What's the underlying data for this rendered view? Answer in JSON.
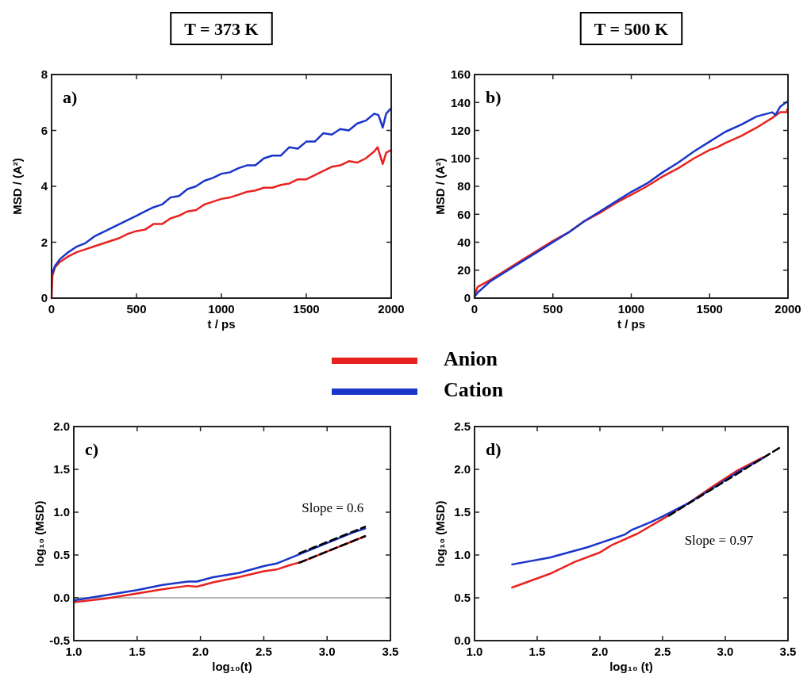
{
  "chart_data": [
    {
      "type": "line",
      "title": "T = 373 K",
      "xlabel": "t / ps",
      "ylabel": "MSD / (A²)",
      "xlim": [
        0,
        2000
      ],
      "ylim": [
        0,
        8
      ],
      "xticks": [
        0,
        500,
        1000,
        1500,
        2000
      ],
      "yticks": [
        0,
        2,
        4,
        6,
        8
      ],
      "legend": "bottom",
      "annotations": [
        "a)"
      ],
      "series": [
        {
          "name": "Anion",
          "color": "#e8231f",
          "x": [
            0,
            5,
            20,
            50,
            100,
            150,
            200,
            250,
            300,
            350,
            400,
            450,
            500,
            550,
            600,
            650,
            700,
            750,
            800,
            850,
            900,
            950,
            1000,
            1050,
            1100,
            1150,
            1200,
            1250,
            1300,
            1350,
            1400,
            1450,
            1500,
            1550,
            1600,
            1650,
            1700,
            1750,
            1800,
            1850,
            1900,
            1920,
            1950,
            1970,
            2000
          ],
          "values": [
            0,
            0.8,
            1.1,
            1.3,
            1.5,
            1.65,
            1.75,
            1.85,
            1.95,
            2.05,
            2.15,
            2.3,
            2.4,
            2.45,
            2.65,
            2.65,
            2.85,
            2.95,
            3.1,
            3.15,
            3.35,
            3.45,
            3.55,
            3.6,
            3.7,
            3.8,
            3.85,
            3.95,
            3.95,
            4.05,
            4.1,
            4.25,
            4.25,
            4.4,
            4.55,
            4.7,
            4.75,
            4.9,
            4.85,
            5.0,
            5.25,
            5.4,
            4.8,
            5.2,
            5.3
          ]
        },
        {
          "name": "Cation",
          "color": "#1a35c8",
          "x": [
            5,
            20,
            50,
            100,
            150,
            200,
            250,
            300,
            350,
            400,
            450,
            500,
            550,
            600,
            650,
            700,
            750,
            800,
            850,
            900,
            950,
            1000,
            1050,
            1100,
            1150,
            1200,
            1250,
            1300,
            1350,
            1400,
            1450,
            1500,
            1550,
            1600,
            1650,
            1700,
            1750,
            1800,
            1850,
            1900,
            1925,
            1950,
            1970,
            2000
          ],
          "values": [
            0.9,
            1.15,
            1.4,
            1.65,
            1.85,
            1.97,
            2.2,
            2.35,
            2.5,
            2.65,
            2.8,
            2.95,
            3.1,
            3.25,
            3.35,
            3.6,
            3.65,
            3.9,
            4.0,
            4.2,
            4.3,
            4.45,
            4.5,
            4.65,
            4.75,
            4.75,
            5.0,
            5.1,
            5.1,
            5.4,
            5.35,
            5.6,
            5.6,
            5.9,
            5.85,
            6.05,
            6.0,
            6.25,
            6.35,
            6.6,
            6.55,
            6.1,
            6.6,
            6.8
          ]
        }
      ]
    },
    {
      "type": "line",
      "title": "T = 500 K",
      "xlabel": "t / ps",
      "ylabel": "MSD / (A²)",
      "xlim": [
        0,
        2000
      ],
      "ylim": [
        0,
        160
      ],
      "xticks": [
        0,
        500,
        1000,
        1500,
        2000
      ],
      "yticks": [
        0,
        20,
        40,
        60,
        80,
        100,
        120,
        140,
        160
      ],
      "annotations": [
        "b)"
      ],
      "series": [
        {
          "color": "#e8231f",
          "x": [
            0,
            20,
            100,
            200,
            300,
            400,
            500,
            600,
            700,
            800,
            900,
            1000,
            1100,
            1200,
            1300,
            1400,
            1500,
            1550,
            1600,
            1700,
            1800,
            1900,
            1950,
            1990,
            2000
          ],
          "values": [
            2,
            8,
            13,
            20,
            27,
            34,
            41,
            47,
            55,
            61,
            68,
            74,
            80,
            87,
            93,
            100,
            106,
            108,
            111,
            116,
            122,
            129,
            133,
            133,
            136
          ]
        },
        {
          "color": "#1a35c8",
          "x": [
            0,
            20,
            100,
            200,
            300,
            400,
            500,
            600,
            700,
            800,
            900,
            1000,
            1100,
            1200,
            1300,
            1400,
            1500,
            1600,
            1700,
            1800,
            1900,
            1920,
            1950,
            2000
          ],
          "values": [
            1,
            4,
            12,
            19,
            26,
            33,
            40,
            47,
            55,
            62,
            69,
            76,
            82,
            90,
            97,
            105,
            112,
            119,
            124,
            130,
            133,
            131,
            137,
            141
          ]
        }
      ]
    },
    {
      "type": "line",
      "xlabel": "log₁₀(t)",
      "ylabel": "log₁₀ (MSD)",
      "xlim": [
        1,
        3.5
      ],
      "ylim": [
        -0.5,
        2
      ],
      "xticks": [
        {
          "value": 1,
          "label": "1.0"
        },
        1.5,
        {
          "value": 2,
          "label": "2.0"
        },
        2.5,
        {
          "value": 3,
          "label": "3.0"
        },
        3.5
      ],
      "yticks": [
        -0.5,
        {
          "value": 0,
          "label": "0.0"
        },
        0.5,
        {
          "value": 1,
          "label": "1.0"
        },
        1.5,
        {
          "value": 2,
          "label": "2.0"
        }
      ],
      "ref_lines": [
        {
          "axis": "y",
          "value": 0,
          "color": "#a0a0a0"
        }
      ],
      "annotations": [
        "c)",
        "Slope = 0.6"
      ],
      "series": [
        {
          "color": "#e8231f",
          "x": [
            1,
            1.25,
            1.5,
            1.7,
            1.9,
            1.97,
            2.1,
            2.3,
            2.5,
            2.6,
            2.7,
            2.8,
            3.0,
            3.2,
            3.3
          ],
          "values": [
            -0.05,
            -0.01,
            0.05,
            0.1,
            0.14,
            0.13,
            0.18,
            0.24,
            0.31,
            0.33,
            0.38,
            0.42,
            0.54,
            0.66,
            0.72
          ]
        },
        {
          "color": "#1a35c8",
          "x": [
            1,
            1.25,
            1.5,
            1.7,
            1.9,
            1.97,
            2.1,
            2.3,
            2.5,
            2.6,
            2.7,
            2.8,
            3.0,
            3.2,
            3.3
          ],
          "values": [
            -0.03,
            0.03,
            0.09,
            0.15,
            0.19,
            0.19,
            0.24,
            0.29,
            0.37,
            0.4,
            0.46,
            0.52,
            0.64,
            0.76,
            0.81
          ]
        },
        {
          "color": "#000000",
          "line_style": "dashed",
          "x": [
            2.78,
            3.3
          ],
          "values": [
            0.52,
            0.83
          ]
        },
        {
          "color": "#000000",
          "line_style": "dashed",
          "x": [
            2.78,
            3.3
          ],
          "values": [
            0.41,
            0.72
          ]
        }
      ]
    },
    {
      "type": "line",
      "xlabel": "log₁₀ (t)",
      "ylabel": "log₁₀ (MSD)",
      "xlim": [
        1,
        3.5
      ],
      "ylim": [
        0,
        2.5
      ],
      "xticks": [
        {
          "value": 1,
          "label": "1.0"
        },
        1.5,
        {
          "value": 2,
          "label": "2.0"
        },
        2.5,
        {
          "value": 3,
          "label": "3.0"
        },
        3.5
      ],
      "yticks": [
        {
          "value": 0,
          "label": "0.0"
        },
        0.5,
        {
          "value": 1,
          "label": "1.0"
        },
        1.5,
        {
          "value": 2,
          "label": "2.0"
        },
        2.5
      ],
      "annotations": [
        "d)",
        "Slope = 0.97"
      ],
      "series": [
        {
          "color": "#e8231f",
          "x": [
            1.3,
            1.6,
            1.8,
            2.0,
            2.1,
            2.3,
            2.5,
            2.7,
            2.9,
            3.1,
            3.3
          ],
          "values": [
            0.62,
            0.78,
            0.92,
            1.03,
            1.12,
            1.25,
            1.42,
            1.6,
            1.8,
            1.99,
            2.14
          ]
        },
        {
          "color": "#1a35c8",
          "x": [
            1.3,
            1.6,
            1.9,
            2.0,
            2.2,
            2.25,
            2.4,
            2.5,
            2.7,
            2.9,
            3.1,
            3.3
          ],
          "values": [
            0.89,
            0.97,
            1.09,
            1.14,
            1.24,
            1.29,
            1.38,
            1.45,
            1.6,
            1.78,
            1.97,
            2.13
          ]
        },
        {
          "color": "#000000",
          "line_style": "dashed",
          "x": [
            2.55,
            3.43
          ],
          "values": [
            1.46,
            2.25
          ]
        }
      ]
    }
  ]
}
